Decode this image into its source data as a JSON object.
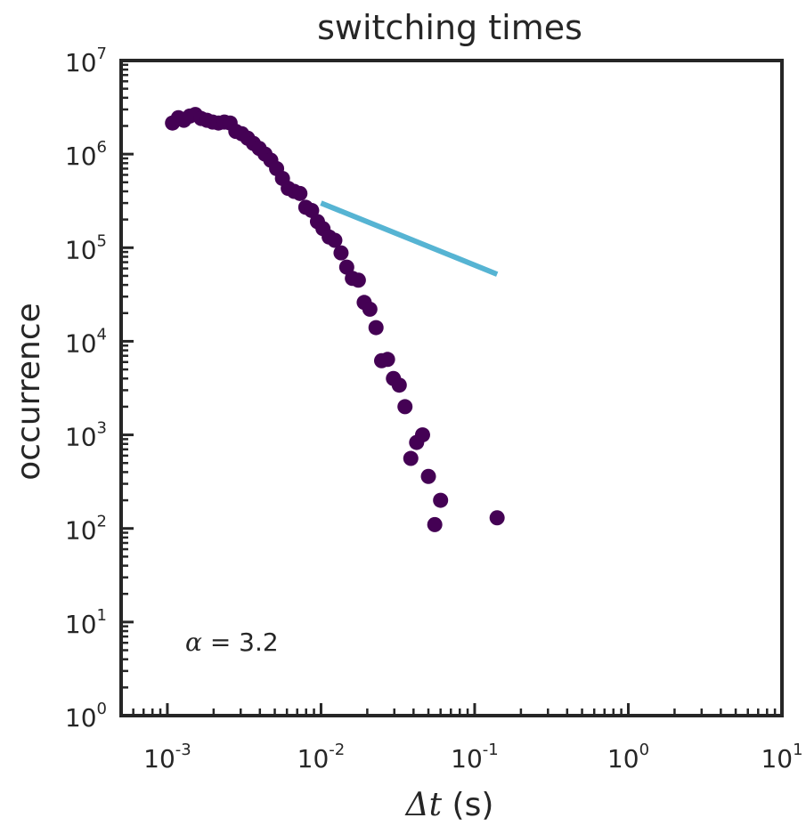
{
  "chart_data": {
    "type": "scatter",
    "title": "switching times",
    "xlabel": {
      "symbol": "Δt",
      "unit": "(s)"
    },
    "ylabel": "occurrence",
    "xscale": "log",
    "yscale": "log",
    "xlim": [
      0.0005,
      10
    ],
    "ylim": [
      1,
      10000000
    ],
    "xticks": [
      {
        "base": "10",
        "exp": "-3",
        "value": 0.001
      },
      {
        "base": "10",
        "exp": "-2",
        "value": 0.01
      },
      {
        "base": "10",
        "exp": "-1",
        "value": 0.1
      },
      {
        "base": "10",
        "exp": "0",
        "value": 1
      },
      {
        "base": "10",
        "exp": "1",
        "value": 10
      }
    ],
    "yticks": [
      {
        "base": "10",
        "exp": "0",
        "value": 1
      },
      {
        "base": "10",
        "exp": "1",
        "value": 10
      },
      {
        "base": "10",
        "exp": "2",
        "value": 100
      },
      {
        "base": "10",
        "exp": "3",
        "value": 1000
      },
      {
        "base": "10",
        "exp": "4",
        "value": 10000
      },
      {
        "base": "10",
        "exp": "5",
        "value": 100000
      },
      {
        "base": "10",
        "exp": "6",
        "value": 1000000
      },
      {
        "base": "10",
        "exp": "7",
        "value": 10000000
      }
    ],
    "grid": false,
    "series": [
      {
        "kind": "scatter",
        "color": "#440154",
        "points": [
          [
            0.00108,
            2150000
          ],
          [
            0.00118,
            2450000
          ],
          [
            0.00128,
            2300000
          ],
          [
            0.0014,
            2550000
          ],
          [
            0.00152,
            2650000
          ],
          [
            0.00166,
            2400000
          ],
          [
            0.00181,
            2300000
          ],
          [
            0.00197,
            2200000
          ],
          [
            0.00215,
            2150000
          ],
          [
            0.00235,
            2200000
          ],
          [
            0.00256,
            2150000
          ],
          [
            0.00279,
            1750000
          ],
          [
            0.00305,
            1650000
          ],
          [
            0.00333,
            1480000
          ],
          [
            0.00363,
            1300000
          ],
          [
            0.00396,
            1150000
          ],
          [
            0.00432,
            1000000
          ],
          [
            0.00471,
            860000
          ],
          [
            0.00514,
            700000
          ],
          [
            0.00561,
            550000
          ],
          [
            0.00612,
            430000
          ],
          [
            0.00668,
            400000
          ],
          [
            0.00729,
            380000
          ],
          [
            0.00796,
            270000
          ],
          [
            0.00869,
            250000
          ],
          [
            0.00948,
            190000
          ],
          [
            0.0103,
            160000
          ],
          [
            0.0113,
            130000
          ],
          [
            0.0123,
            120000
          ],
          [
            0.0135,
            88000
          ],
          [
            0.0147,
            62000
          ],
          [
            0.016,
            47000
          ],
          [
            0.0175,
            45000
          ],
          [
            0.0191,
            26000
          ],
          [
            0.0208,
            22000
          ],
          [
            0.0228,
            14000
          ],
          [
            0.0248,
            6200
          ],
          [
            0.0271,
            6400
          ],
          [
            0.0296,
            4000
          ],
          [
            0.0323,
            3400
          ],
          [
            0.0352,
            2000
          ],
          [
            0.0384,
            560
          ],
          [
            0.0419,
            830
          ],
          [
            0.0458,
            1000
          ],
          [
            0.05,
            360
          ],
          [
            0.055,
            110
          ],
          [
            0.06,
            200
          ],
          [
            0.14,
            130
          ]
        ]
      },
      {
        "kind": "line",
        "color": "#56b4d3",
        "points": [
          [
            0.01,
            300000
          ],
          [
            0.14,
            52000
          ]
        ]
      }
    ],
    "annotation": {
      "symbol": "α",
      "text": " = 3.2"
    }
  }
}
